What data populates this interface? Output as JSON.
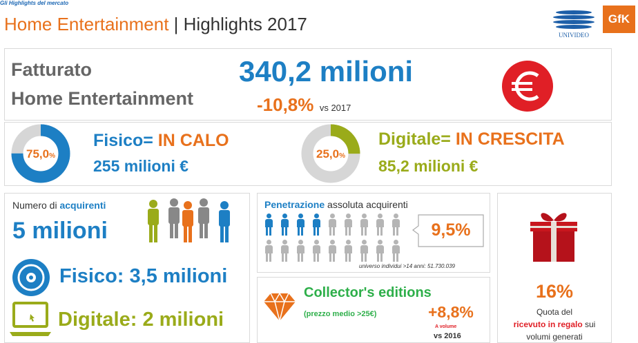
{
  "header": {
    "kicker": "Gli Highlights del mercato",
    "title_accent": "Home Entertainment",
    "title_sep": " | ",
    "title_rest": "Highlights 2017",
    "logo_univideo": "UNIVIDEO",
    "logo_gfk": "GfK"
  },
  "fatturato": {
    "label_line1": "Fatturato",
    "label_line2": "Home Entertainment",
    "value": "340,2 milioni",
    "change": "-10,8%",
    "change_suffix": "vs 2017",
    "icon": "euro-icon"
  },
  "fisico": {
    "pct": "75,0",
    "pct_sign": "%",
    "share": 0.75,
    "label": "Fisico= ",
    "status": "IN CALO",
    "amount": "255 milioni €"
  },
  "digitale": {
    "pct": "25,0",
    "pct_sign": "%",
    "share": 0.25,
    "label": "Digitale= ",
    "status": "IN CRESCITA",
    "amount": "85,2 milioni €"
  },
  "acquirenti": {
    "caption_prefix": "Numero di ",
    "caption_bold": "acquirenti",
    "total": "5 milioni",
    "fisico": "Fisico:  3,5 milioni",
    "digitale": "Digitale: 2 milioni"
  },
  "penetrazione": {
    "title_bold": "Penetrazione",
    "title_rest": " assoluta acquirenti",
    "value": "9,5%",
    "highlighted_people": 4,
    "total_people": 18,
    "footnote": "universo individui >14 anni: 51.730.039"
  },
  "collector": {
    "title": "Collector's editions",
    "subtitle": "(prezzo medio >25€)",
    "value": "+8,8%",
    "note_small": "A volume",
    "note_vs": "vs 2016"
  },
  "regalo": {
    "value": "16%",
    "line1": "Quota del",
    "highlight": "ricevuto in regalo",
    "line2_rest": " sui",
    "line3": "volumi generati"
  },
  "colors": {
    "blue": "#1d7fc4",
    "orange": "#e8711c",
    "olive": "#9aab1a",
    "green": "#2eaf4a",
    "red": "#e01f26",
    "grey": "#666666"
  }
}
